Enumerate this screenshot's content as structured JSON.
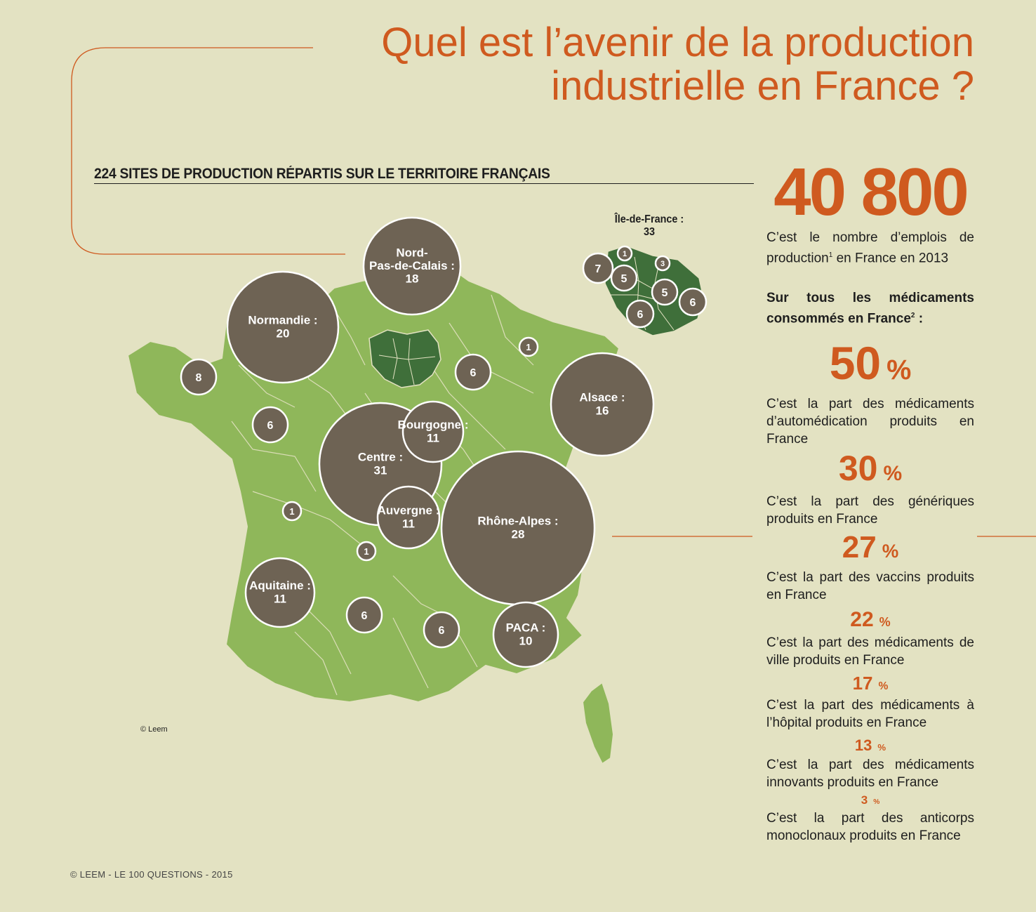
{
  "page": {
    "title_line1": "Quel est l’avenir de la production",
    "title_line2": "industrielle en France ?",
    "map_heading": "224 SITES DE PRODUCTION RÉPARTIS SUR LE TERRITOIRE FRANÇAIS",
    "credit": "© Leem",
    "footer": "© LEEM - LE 100 QUESTIONS - 2015"
  },
  "colors": {
    "accent": "#cf5a1f",
    "background": "#e3e2c2",
    "map_green": "#8fb75a",
    "idf_green": "#3f6f3a",
    "bubble": "#6e6354"
  },
  "map": {
    "idf_inset": {
      "label": "Île-de-France :",
      "value": "33",
      "departments": [
        "1",
        "3",
        "7",
        "5",
        "5",
        "6",
        "6"
      ]
    },
    "regions": [
      {
        "name": "Nord-\nPas-de-Calais :",
        "value": "18"
      },
      {
        "name": "Normandie :",
        "value": "20"
      },
      {
        "name": "Alsace :",
        "value": "16"
      },
      {
        "name": "Centre :",
        "value": "31"
      },
      {
        "name": "Bourgogne :",
        "value": "11"
      },
      {
        "name": "Auvergne :",
        "value": "11"
      },
      {
        "name": "Rhône-Alpes :",
        "value": "28"
      },
      {
        "name": "Aquitaine :",
        "value": "11"
      },
      {
        "name": "PACA :",
        "value": "10"
      }
    ],
    "unnamed_counts": [
      "8",
      "6",
      "6",
      "1",
      "1",
      "1",
      "6",
      "6"
    ]
  },
  "stats": {
    "employment_number": "40 800",
    "employment_desc_a": "C’est le nombre d’emplois de production",
    "employment_desc_sup": "1",
    "employment_desc_b": " en France en 2013",
    "sub_heading_a": "Sur tous les médicaments consommés en France",
    "sub_heading_sup": "2",
    "sub_heading_b": " :",
    "items": [
      {
        "value": "50",
        "unit": "%",
        "desc": "C’est la part des médicaments d’automédication produits en France"
      },
      {
        "value": "30",
        "unit": "%",
        "desc": "C’est la part des génériques produits en France"
      },
      {
        "value": "27",
        "unit": "%",
        "desc": "C’est la part des vaccins produits en France"
      },
      {
        "value": "22",
        "unit": "%",
        "desc": "C’est la part des médicaments de ville produits en France"
      },
      {
        "value": "17",
        "unit": "%",
        "desc": "C’est la part des médicaments à l’hôpital produits en France"
      },
      {
        "value": "13",
        "unit": "%",
        "desc": "C’est la part des médicaments innovants produits en France"
      },
      {
        "value": "3",
        "unit": "%",
        "desc": "C’est la part des anticorps monoclonaux produits en France"
      }
    ]
  }
}
